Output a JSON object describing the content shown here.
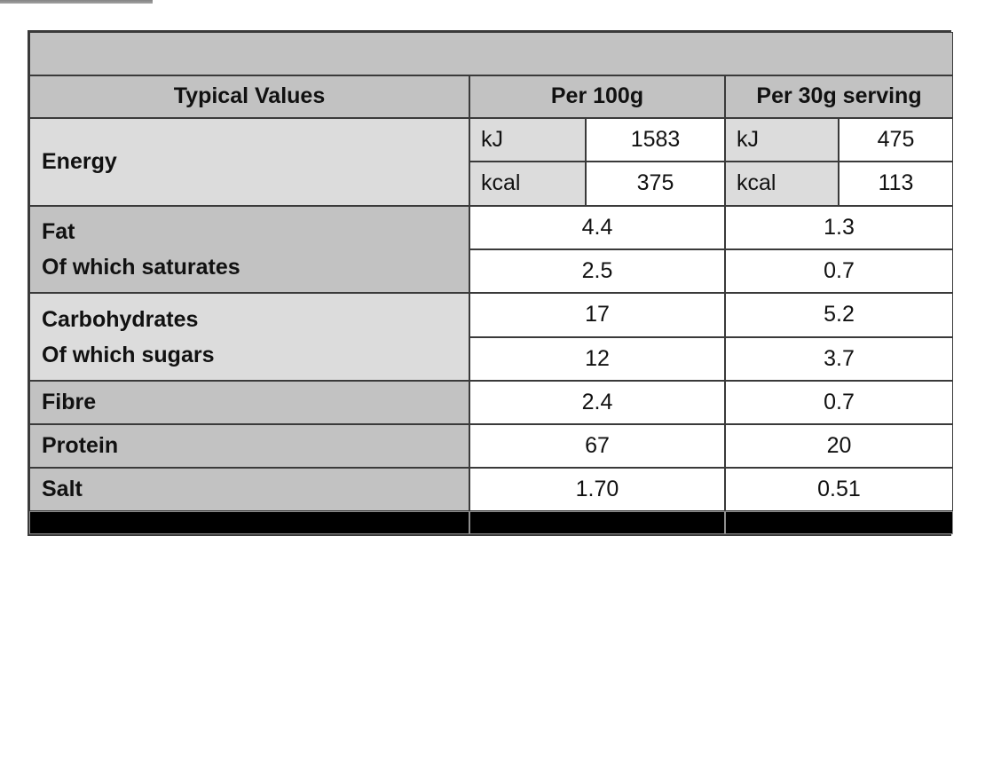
{
  "colors": {
    "header_bg": "#c2c2c2",
    "label_row_dark_bg": "#c2c2c2",
    "label_row_light_bg": "#dcdcdc",
    "value_cell_bg": "#ffffff",
    "grid_border": "#3a3a3a",
    "bottom_bar_bg": "#000000",
    "top_fragment_bar": "#8f8f8f"
  },
  "table": {
    "header": {
      "typical_values": "Typical Values",
      "per_100g": "Per 100g",
      "per_30g_serving": "Per 30g serving"
    },
    "energy": {
      "label": "Energy",
      "per_100g": {
        "kj_label": "kJ",
        "kj_value": "1583",
        "kcal_label": "kcal",
        "kcal_value": "375"
      },
      "per_30g": {
        "kj_label": "kJ",
        "kj_value": "475",
        "kcal_label": "kcal",
        "kcal_value": "113"
      }
    },
    "nutrients": [
      {
        "label": "Fat",
        "per_100g": "4.4",
        "per_30g": "1.3"
      },
      {
        "label": "Of which saturates",
        "per_100g": "2.5",
        "per_30g": "0.7"
      },
      {
        "label": "Carbohydrates",
        "per_100g": "17",
        "per_30g": "5.2"
      },
      {
        "label": "Of which sugars",
        "per_100g": "12",
        "per_30g": "3.7"
      },
      {
        "label": "Fibre",
        "per_100g": "2.4",
        "per_30g": "0.7"
      },
      {
        "label": "Protein",
        "per_100g": "67",
        "per_30g": "20"
      },
      {
        "label": "Salt",
        "per_100g": "1.70",
        "per_30g": "0.51"
      }
    ]
  }
}
